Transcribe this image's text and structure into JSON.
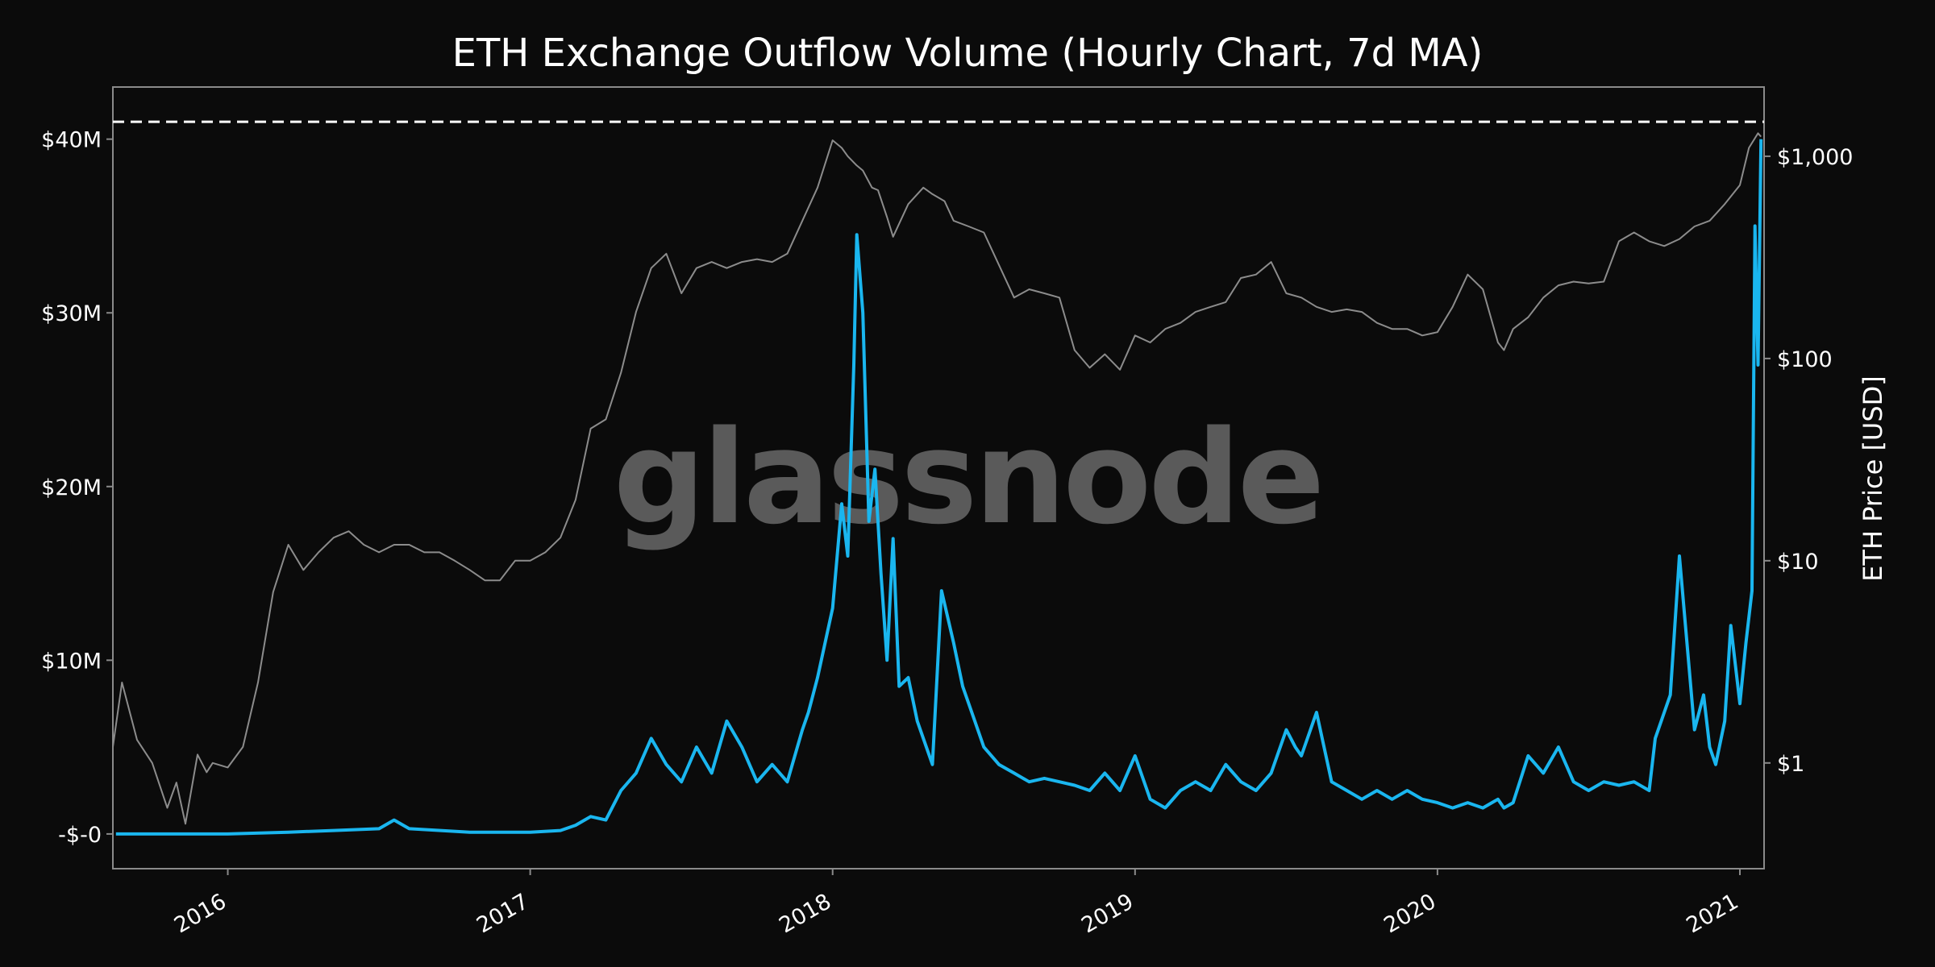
{
  "chart_data": {
    "type": "line",
    "title": "ETH Exchange Outflow Volume (Hourly Chart, 7d MA)",
    "watermark": "glassnode",
    "xlabel": "",
    "ylabel_left": "",
    "ylabel_right": "ETH Price [USD]",
    "x_ticks": [
      "2016",
      "2017",
      "2018",
      "2019",
      "2020",
      "2021"
    ],
    "y_left_ticks": [
      "-$-0",
      "$10M",
      "$20M",
      "$30M",
      "$40M"
    ],
    "y_left_tick_values": [
      0,
      10,
      20,
      30,
      40
    ],
    "y_right_ticks": [
      "$1",
      "$10",
      "$100",
      "$1,000"
    ],
    "y_right_tick_values": [
      1,
      10,
      100,
      1000
    ],
    "xlim": [
      2015.62,
      2021.08
    ],
    "ylim_left": [
      -2,
      43
    ],
    "ylim_right": [
      0.3,
      2200
    ],
    "reference_line": {
      "value": 41,
      "style": "dashed",
      "color": "#ffffff"
    },
    "series": [
      {
        "name": "Exchange Outflow Volume [USD]",
        "axis": "left",
        "color": "#1ab6ef",
        "x": [
          2015.63,
          2015.8,
          2016.0,
          2016.2,
          2016.35,
          2016.5,
          2016.55,
          2016.6,
          2016.8,
          2017.0,
          2017.1,
          2017.15,
          2017.2,
          2017.25,
          2017.3,
          2017.35,
          2017.4,
          2017.45,
          2017.5,
          2017.55,
          2017.6,
          2017.65,
          2017.7,
          2017.75,
          2017.8,
          2017.85,
          2017.9,
          2017.92,
          2017.95,
          2018.0,
          2018.03,
          2018.05,
          2018.07,
          2018.08,
          2018.1,
          2018.12,
          2018.14,
          2018.16,
          2018.18,
          2018.2,
          2018.22,
          2018.25,
          2018.28,
          2018.3,
          2018.33,
          2018.36,
          2018.4,
          2018.43,
          2018.46,
          2018.5,
          2018.55,
          2018.6,
          2018.65,
          2018.7,
          2018.75,
          2018.8,
          2018.85,
          2018.9,
          2018.95,
          2019.0,
          2019.05,
          2019.1,
          2019.15,
          2019.2,
          2019.25,
          2019.3,
          2019.35,
          2019.4,
          2019.45,
          2019.5,
          2019.53,
          2019.55,
          2019.6,
          2019.65,
          2019.7,
          2019.75,
          2019.8,
          2019.85,
          2019.9,
          2019.95,
          2020.0,
          2020.05,
          2020.1,
          2020.15,
          2020.18,
          2020.2,
          2020.22,
          2020.25,
          2020.3,
          2020.35,
          2020.4,
          2020.45,
          2020.5,
          2020.55,
          2020.6,
          2020.65,
          2020.7,
          2020.72,
          2020.75,
          2020.77,
          2020.8,
          2020.85,
          2020.88,
          2020.9,
          2020.92,
          2020.95,
          2020.97,
          2021.0,
          2021.02,
          2021.04,
          2021.05,
          2021.06,
          2021.07
        ],
        "y": [
          0,
          0,
          0,
          0.1,
          0.2,
          0.3,
          0.8,
          0.3,
          0.1,
          0.1,
          0.2,
          0.5,
          1.0,
          0.8,
          2.5,
          3.5,
          5.5,
          4.0,
          3.0,
          5.0,
          3.5,
          6.5,
          5.0,
          3.0,
          4.0,
          3.0,
          6.0,
          7.0,
          9.0,
          13.0,
          19.0,
          16.0,
          27.0,
          34.5,
          30.0,
          18.0,
          21.0,
          15.0,
          10.0,
          17.0,
          8.5,
          9.0,
          6.5,
          5.5,
          4.0,
          14.0,
          11.0,
          8.5,
          7.0,
          5.0,
          4.0,
          3.5,
          3.0,
          3.2,
          3.0,
          2.8,
          2.5,
          3.5,
          2.5,
          4.5,
          2.0,
          1.5,
          2.5,
          3.0,
          2.5,
          4.0,
          3.0,
          2.5,
          3.5,
          6.0,
          5.0,
          4.5,
          7.0,
          3.0,
          2.5,
          2.0,
          2.5,
          2.0,
          2.5,
          2.0,
          1.8,
          1.5,
          1.8,
          1.5,
          1.8,
          2.0,
          1.5,
          1.8,
          4.5,
          3.5,
          5.0,
          3.0,
          2.5,
          3.0,
          2.8,
          3.0,
          2.5,
          5.5,
          7.0,
          8.0,
          16.0,
          6.0,
          8.0,
          5.0,
          4.0,
          6.5,
          12.0,
          7.5,
          11.0,
          14.0,
          35.0,
          27.0,
          40.0
        ]
      },
      {
        "name": "ETH Price [USD]",
        "axis": "right",
        "color": "#8c8c8c",
        "x": [
          2015.62,
          2015.65,
          2015.7,
          2015.75,
          2015.8,
          2015.83,
          2015.86,
          2015.9,
          2015.93,
          2015.95,
          2016.0,
          2016.05,
          2016.1,
          2016.15,
          2016.2,
          2016.25,
          2016.3,
          2016.35,
          2016.4,
          2016.45,
          2016.5,
          2016.55,
          2016.6,
          2016.65,
          2016.7,
          2016.75,
          2016.8,
          2016.85,
          2016.9,
          2016.95,
          2017.0,
          2017.05,
          2017.1,
          2017.15,
          2017.2,
          2017.25,
          2017.3,
          2017.35,
          2017.4,
          2017.45,
          2017.5,
          2017.55,
          2017.6,
          2017.65,
          2017.7,
          2017.75,
          2017.8,
          2017.85,
          2017.9,
          2017.95,
          2018.0,
          2018.03,
          2018.05,
          2018.08,
          2018.1,
          2018.13,
          2018.15,
          2018.18,
          2018.2,
          2018.25,
          2018.3,
          2018.33,
          2018.37,
          2018.4,
          2018.45,
          2018.5,
          2018.55,
          2018.6,
          2018.65,
          2018.7,
          2018.75,
          2018.8,
          2018.85,
          2018.9,
          2018.95,
          2019.0,
          2019.05,
          2019.1,
          2019.15,
          2019.2,
          2019.25,
          2019.3,
          2019.35,
          2019.4,
          2019.45,
          2019.5,
          2019.55,
          2019.6,
          2019.65,
          2019.7,
          2019.75,
          2019.8,
          2019.85,
          2019.9,
          2019.95,
          2020.0,
          2020.05,
          2020.1,
          2020.15,
          2020.2,
          2020.22,
          2020.25,
          2020.3,
          2020.35,
          2020.4,
          2020.45,
          2020.5,
          2020.55,
          2020.6,
          2020.65,
          2020.7,
          2020.75,
          2020.8,
          2020.85,
          2020.9,
          2020.95,
          2021.0,
          2021.03,
          2021.06,
          2021.07
        ],
        "y": [
          1.2,
          2.5,
          1.3,
          1.0,
          0.6,
          0.8,
          0.5,
          1.1,
          0.9,
          1.0,
          0.95,
          1.2,
          2.5,
          7.0,
          12.0,
          9.0,
          11.0,
          13.0,
          14.0,
          12.0,
          11.0,
          12.0,
          12.0,
          11.0,
          11.0,
          10.0,
          9.0,
          8.0,
          8.0,
          10.0,
          10.0,
          11.0,
          13.0,
          20.0,
          45.0,
          50.0,
          85.0,
          170.0,
          280.0,
          330.0,
          210.0,
          280.0,
          300.0,
          280.0,
          300.0,
          310.0,
          300.0,
          330.0,
          480.0,
          700.0,
          1200.0,
          1100.0,
          1000.0,
          900.0,
          850.0,
          700.0,
          680.0,
          500.0,
          400.0,
          580.0,
          700.0,
          650.0,
          600.0,
          480.0,
          450.0,
          420.0,
          290.0,
          200.0,
          220.0,
          210.0,
          200.0,
          110.0,
          90.0,
          105.0,
          88.0,
          130.0,
          120.0,
          140.0,
          150.0,
          170.0,
          180.0,
          190.0,
          250.0,
          260.0,
          300.0,
          210.0,
          200.0,
          180.0,
          170.0,
          175.0,
          170.0,
          150.0,
          140.0,
          140.0,
          130.0,
          135.0,
          180.0,
          260.0,
          220.0,
          120.0,
          110.0,
          140.0,
          160.0,
          200.0,
          230.0,
          240.0,
          235.0,
          240.0,
          380.0,
          420.0,
          380.0,
          360.0,
          390.0,
          450.0,
          480.0,
          580.0,
          720.0,
          1100.0,
          1300.0,
          1250.0
        ]
      }
    ]
  }
}
